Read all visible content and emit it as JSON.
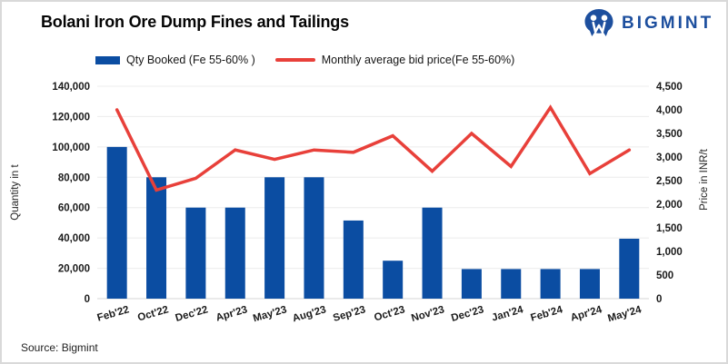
{
  "header": {
    "title": "Bolani Iron Ore Dump Fines and Tailings",
    "brand": "BIGMINT"
  },
  "source_note": "Source: Bigmint",
  "colors": {
    "bar": "#0b4da2",
    "line": "#e8403a",
    "brand_blue": "#1d4f9e",
    "grid": "#ececec",
    "baseline": "#d6d6d6",
    "tick_text": "#1a1a1a"
  },
  "chart_data": {
    "type": "bar+line",
    "categories": [
      "Feb'22",
      "Oct'22",
      "Dec'22",
      "Apr'23",
      "May'23",
      "Aug'23",
      "Sep'23",
      "Oct'23",
      "Nov'23",
      "Dec'23",
      "Jan'24",
      "Feb'24",
      "Apr'24",
      "May'24"
    ],
    "series": [
      {
        "name": "Qty Booked (Fe 55-60% )",
        "type": "bar",
        "axis": "left",
        "color": "#0b4da2",
        "values": [
          100000,
          80000,
          60000,
          60000,
          80000,
          80000,
          51500,
          25000,
          60000,
          19500,
          19500,
          19500,
          19500,
          39500
        ]
      },
      {
        "name": "Monthly average bid price(Fe 55-60%)",
        "type": "line",
        "axis": "right",
        "color": "#e8403a",
        "values": [
          4000,
          2300,
          2550,
          3150,
          2950,
          3150,
          3100,
          3450,
          2700,
          3500,
          2800,
          4050,
          2650,
          3150
        ]
      }
    ],
    "left_axis": {
      "label": "Quantity in t",
      "min": 0,
      "max": 140000,
      "step": 20000
    },
    "right_axis": {
      "label": "Price in INR/t",
      "min": 0,
      "max": 4500,
      "step": 500
    },
    "grid": true,
    "legend_position": "top"
  }
}
